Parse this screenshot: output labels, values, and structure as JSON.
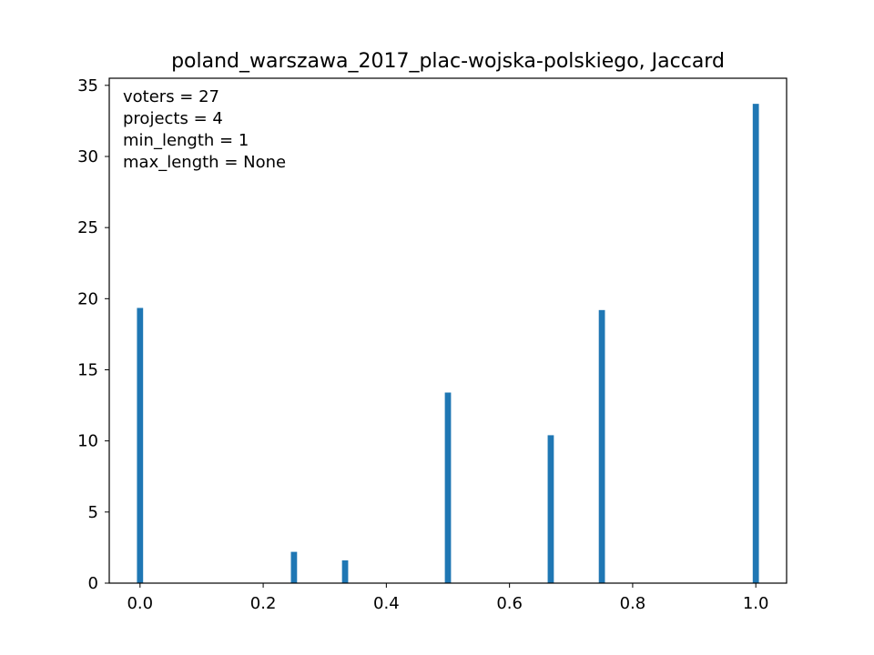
{
  "chart_data": {
    "type": "bar",
    "title": "poland_warszawa_2017_plac-wojska-polskiego, Jaccard",
    "xlabel": "",
    "ylabel": "",
    "xlim": [
      -0.05,
      1.05
    ],
    "ylim": [
      0,
      35.5
    ],
    "xticks": [
      0.0,
      0.2,
      0.4,
      0.6,
      0.8,
      1.0
    ],
    "xtick_labels": [
      "0.0",
      "0.2",
      "0.4",
      "0.6",
      "0.8",
      "1.0"
    ],
    "yticks": [
      0,
      5,
      10,
      15,
      20,
      25,
      30,
      35
    ],
    "ytick_labels": [
      "0",
      "5",
      "10",
      "15",
      "20",
      "25",
      "30",
      "35"
    ],
    "bar_width": 0.01,
    "color": "#1f77b4",
    "grid": false,
    "annotations": [
      "voters = 27",
      "projects = 4",
      "min_length = 1",
      "max_length = None"
    ],
    "bars": [
      {
        "x": 0.0,
        "value": 19.35
      },
      {
        "x": 0.25,
        "value": 2.2
      },
      {
        "x": 0.333,
        "value": 1.6
      },
      {
        "x": 0.5,
        "value": 13.4
      },
      {
        "x": 0.667,
        "value": 10.4
      },
      {
        "x": 0.75,
        "value": 19.2
      },
      {
        "x": 1.0,
        "value": 33.7
      }
    ]
  }
}
